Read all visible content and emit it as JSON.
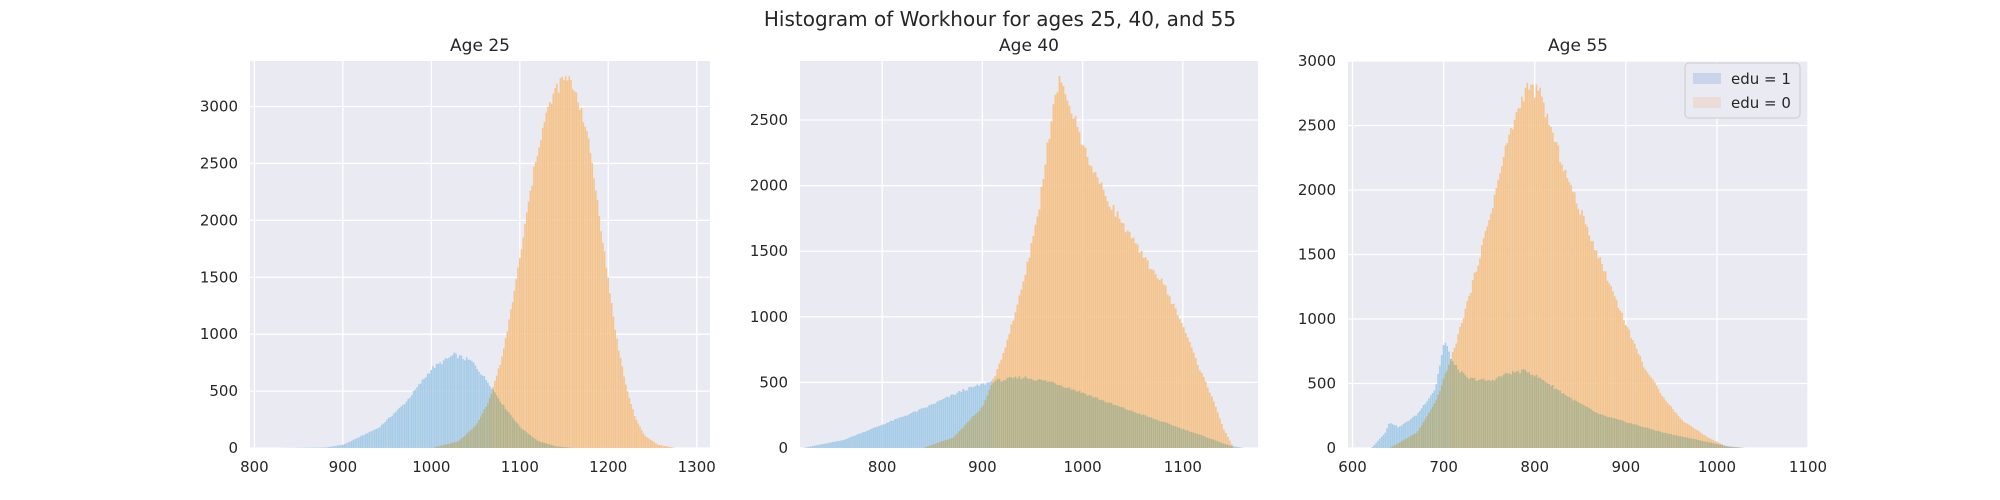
{
  "figure": {
    "suptitle": "Histogram of Workhour for ages 25, 40, and 55"
  },
  "colors": {
    "background": "#eaeaf2",
    "grid": "#ffffff",
    "edu1": "#a6cce8",
    "edu0": "#f4c48c",
    "overlap": "#b3b48e"
  },
  "legend": {
    "placement": "top-right",
    "entries": [
      {
        "label": "edu = 1",
        "color": "#c9d3e9"
      },
      {
        "label": "edu = 0",
        "color": "#ecdcd8"
      }
    ]
  },
  "chart_data": [
    {
      "type": "histogram",
      "title": "Age 25",
      "xlim": [
        795,
        1315
      ],
      "ylim": [
        0,
        3400
      ],
      "xticks": [
        800,
        900,
        1000,
        1100,
        1200,
        1300
      ],
      "yticks": [
        0,
        500,
        1000,
        1500,
        2000,
        2500,
        3000
      ],
      "series": [
        {
          "name": "edu = 1",
          "points": [
            [
              820,
              0
            ],
            [
              880,
              5
            ],
            [
              900,
              30
            ],
            [
              940,
              180
            ],
            [
              970,
              400
            ],
            [
              1000,
              700
            ],
            [
              1025,
              820
            ],
            [
              1045,
              760
            ],
            [
              1065,
              560
            ],
            [
              1080,
              380
            ],
            [
              1100,
              180
            ],
            [
              1120,
              60
            ],
            [
              1140,
              15
            ],
            [
              1160,
              0
            ]
          ]
        },
        {
          "name": "edu = 0",
          "points": [
            [
              1000,
              0
            ],
            [
              1030,
              60
            ],
            [
              1050,
              200
            ],
            [
              1065,
              430
            ],
            [
              1080,
              820
            ],
            [
              1090,
              1250
            ],
            [
              1100,
              1700
            ],
            [
              1110,
              2200
            ],
            [
              1120,
              2650
            ],
            [
              1130,
              2950
            ],
            [
              1140,
              3150
            ],
            [
              1150,
              3250
            ],
            [
              1160,
              3180
            ],
            [
              1170,
              2950
            ],
            [
              1180,
              2550
            ],
            [
              1190,
              2000
            ],
            [
              1200,
              1420
            ],
            [
              1210,
              900
            ],
            [
              1220,
              520
            ],
            [
              1230,
              260
            ],
            [
              1240,
              110
            ],
            [
              1255,
              30
            ],
            [
              1275,
              0
            ]
          ]
        }
      ]
    },
    {
      "type": "histogram",
      "title": "Age 40",
      "xlim": [
        718,
        1175
      ],
      "ylim": [
        0,
        2950
      ],
      "xticks": [
        800,
        900,
        1000,
        1100
      ],
      "yticks": [
        0,
        500,
        1000,
        1500,
        2000,
        2500
      ],
      "series": [
        {
          "name": "edu = 1",
          "points": [
            [
              720,
              0
            ],
            [
              760,
              60
            ],
            [
              800,
              180
            ],
            [
              840,
              300
            ],
            [
              880,
              440
            ],
            [
              910,
              510
            ],
            [
              940,
              540
            ],
            [
              970,
              500
            ],
            [
              1000,
              420
            ],
            [
              1030,
              330
            ],
            [
              1060,
              250
            ],
            [
              1090,
              170
            ],
            [
              1120,
              90
            ],
            [
              1145,
              20
            ],
            [
              1160,
              0
            ]
          ]
        },
        {
          "name": "edu = 0",
          "points": [
            [
              840,
              0
            ],
            [
              870,
              80
            ],
            [
              900,
              320
            ],
            [
              920,
              720
            ],
            [
              940,
              1250
            ],
            [
              955,
              1800
            ],
            [
              965,
              2350
            ],
            [
              975,
              2800
            ],
            [
              985,
              2650
            ],
            [
              1000,
              2300
            ],
            [
              1020,
              1950
            ],
            [
              1040,
              1700
            ],
            [
              1060,
              1450
            ],
            [
              1080,
              1250
            ],
            [
              1100,
              920
            ],
            [
              1115,
              620
            ],
            [
              1130,
              360
            ],
            [
              1140,
              140
            ],
            [
              1150,
              0
            ]
          ]
        }
      ]
    },
    {
      "type": "histogram",
      "title": "Age 55",
      "xlim": [
        595,
        1100
      ],
      "ylim": [
        0,
        3000
      ],
      "xticks": [
        600,
        700,
        800,
        900,
        1000,
        1100
      ],
      "yticks": [
        0,
        500,
        1000,
        1500,
        2000,
        2500,
        3000
      ],
      "series": [
        {
          "name": "edu = 1",
          "points": [
            [
              620,
              0
            ],
            [
              635,
              120
            ],
            [
              640,
              200
            ],
            [
              650,
              160
            ],
            [
              670,
              260
            ],
            [
              690,
              460
            ],
            [
              700,
              830
            ],
            [
              710,
              650
            ],
            [
              725,
              540
            ],
            [
              750,
              520
            ],
            [
              770,
              580
            ],
            [
              790,
              600
            ],
            [
              810,
              520
            ],
            [
              840,
              380
            ],
            [
              870,
              260
            ],
            [
              900,
              200
            ],
            [
              940,
              120
            ],
            [
              980,
              60
            ],
            [
              1010,
              15
            ],
            [
              1030,
              0
            ]
          ]
        },
        {
          "name": "edu = 0",
          "points": [
            [
              640,
              0
            ],
            [
              670,
              120
            ],
            [
              690,
              350
            ],
            [
              710,
              750
            ],
            [
              730,
              1250
            ],
            [
              750,
              1800
            ],
            [
              770,
              2400
            ],
            [
              790,
              2800
            ],
            [
              805,
              2750
            ],
            [
              820,
              2400
            ],
            [
              840,
              2000
            ],
            [
              860,
              1650
            ],
            [
              880,
              1300
            ],
            [
              900,
              950
            ],
            [
              920,
              620
            ],
            [
              940,
              400
            ],
            [
              960,
              220
            ],
            [
              990,
              80
            ],
            [
              1010,
              10
            ],
            [
              1030,
              0
            ]
          ]
        }
      ]
    }
  ]
}
